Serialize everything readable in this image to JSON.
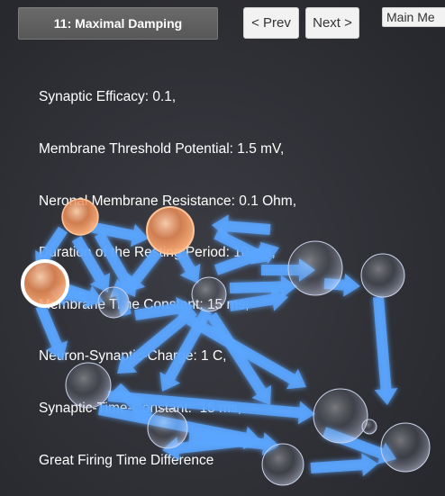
{
  "header": {
    "level_title": "11: Maximal Damping",
    "prev_label": "< Prev",
    "next_label": "Next >",
    "main_menu_label": "Main Me"
  },
  "parameters": {
    "lines": [
      "Synaptic Efficacy: 0.1,",
      "Membrane Threshold Potential: 1.5 mV,",
      "Neronal Membrane Resistance: 0.1 Ohm,",
      "Duration of the Resting Period: 10 ms,",
      "Membrane Time Constant: 15 ms,",
      "Neuron-Synaptic-Charge: 1 C,",
      "Synaptic-Time-Constant:  15 ms,",
      "Great Firing Time Difference"
    ]
  },
  "colors": {
    "arrow": "#5aa6ff",
    "active_neuron": "#f5a06a",
    "background": "#2f3036"
  },
  "network": {
    "neurons": [
      {
        "id": "n1",
        "active": true,
        "selected": false
      },
      {
        "id": "n2",
        "active": true,
        "selected": false
      },
      {
        "id": "n3",
        "active": true,
        "selected": true
      },
      {
        "id": "n4",
        "active": false
      },
      {
        "id": "n5",
        "active": false
      },
      {
        "id": "n6",
        "active": false
      },
      {
        "id": "n7",
        "active": false
      },
      {
        "id": "n8",
        "active": false
      },
      {
        "id": "n9",
        "active": false
      },
      {
        "id": "n10",
        "active": false
      },
      {
        "id": "n11",
        "active": false
      },
      {
        "id": "n12",
        "active": false
      },
      {
        "id": "n13",
        "active": false
      }
    ]
  }
}
